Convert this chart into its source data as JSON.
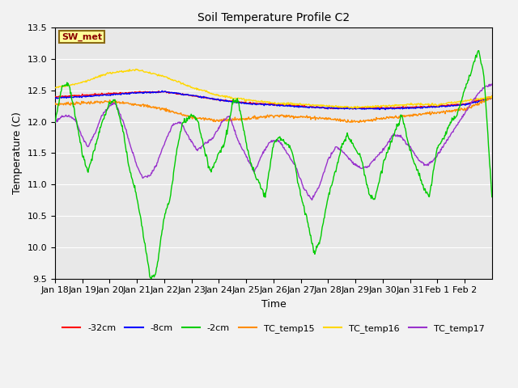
{
  "title": "Soil Temperature Profile C2",
  "xlabel": "Time",
  "ylabel": "Temperature (C)",
  "ylim": [
    9.5,
    13.5
  ],
  "xlim_days": 16,
  "annotation": "SW_met",
  "annotation_color": "#8B0000",
  "annotation_bg": "#FFFF99",
  "annotation_border": "#8B6914",
  "background_color": "#E8E8E8",
  "grid_color": "#FFFFFF",
  "series_colors": {
    "TC_temp15": "#FF8C00",
    "TC_temp16": "#FFD700",
    "-2cm": "#00CC00",
    "TC_temp17": "#9932CC",
    "-32cm": "#FF0000",
    "-8cm": "#0000FF"
  },
  "x_tick_labels": [
    "Jan 18",
    "Jan 19",
    "Jan 20",
    "Jan 21",
    "Jan 22",
    "Jan 23",
    "Jan 24",
    "Jan 25",
    "Jan 26",
    "Jan 27",
    "Jan 28",
    "Jan 29",
    "Jan 30",
    "Jan 31",
    "Feb 1",
    "Feb 2"
  ],
  "yticks": [
    9.5,
    10.0,
    10.5,
    11.0,
    11.5,
    12.0,
    12.5,
    13.0,
    13.5
  ]
}
